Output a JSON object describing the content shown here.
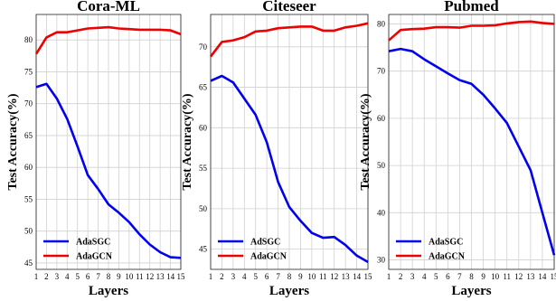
{
  "chart_data": [
    {
      "type": "line",
      "title": "Cora-ML",
      "xlabel": "Layers",
      "ylabel": "Test Accuracy(%)",
      "x": [
        1,
        2,
        3,
        4,
        5,
        6,
        7,
        8,
        9,
        10,
        11,
        12,
        13,
        14,
        15
      ],
      "xticks": [
        "1",
        "2",
        "3",
        "4",
        "5",
        "6",
        "7",
        "8",
        "9",
        "10",
        "11",
        "12",
        "13",
        "14",
        "15"
      ],
      "ylim": [
        44,
        84
      ],
      "yticks": [
        45,
        50,
        55,
        60,
        65,
        70,
        75,
        80
      ],
      "grid": true,
      "legend_position": "lower-left",
      "series": [
        {
          "name": "AdaSGC",
          "color": "#0000ee",
          "values": [
            72.6,
            73.1,
            70.8,
            67.6,
            63.3,
            58.8,
            56.6,
            54.2,
            52.9,
            51.4,
            49.5,
            47.9,
            46.7,
            45.9,
            45.8
          ]
        },
        {
          "name": "AdaGCN",
          "color": "#ee0000",
          "values": [
            77.8,
            80.4,
            81.2,
            81.2,
            81.5,
            81.8,
            81.9,
            82.0,
            81.8,
            81.7,
            81.6,
            81.6,
            81.6,
            81.5,
            80.9
          ]
        }
      ]
    },
    {
      "type": "line",
      "title": "Citeseer",
      "xlabel": "Layers",
      "ylabel": "Test Accuracy(%)",
      "x": [
        1,
        2,
        3,
        4,
        5,
        6,
        7,
        8,
        9,
        10,
        11,
        12,
        13,
        14,
        15
      ],
      "xticks": [
        "1",
        "2",
        "3",
        "4",
        "5",
        "6",
        "7",
        "8",
        "9",
        "10",
        "11",
        "12",
        "13",
        "14",
        "15"
      ],
      "ylim": [
        42.5,
        74
      ],
      "yticks": [
        45,
        50,
        55,
        60,
        65,
        70
      ],
      "grid": true,
      "legend_position": "lower-left",
      "series": [
        {
          "name": "AdSGC",
          "color": "#0000ee",
          "values": [
            65.8,
            66.4,
            65.6,
            63.6,
            61.6,
            58.2,
            53.3,
            50.2,
            48.5,
            47.0,
            46.4,
            46.5,
            45.5,
            44.2,
            43.4
          ]
        },
        {
          "name": "AdaGCN",
          "color": "#ee0000",
          "values": [
            68.8,
            70.6,
            70.8,
            71.2,
            71.9,
            72.0,
            72.3,
            72.4,
            72.5,
            72.5,
            72.0,
            72.0,
            72.4,
            72.6,
            72.9
          ]
        }
      ]
    },
    {
      "type": "line",
      "title": "Pubmed",
      "xlabel": "Layers",
      "ylabel": "Test Accuracy(%)",
      "x": [
        1,
        2,
        3,
        4,
        5,
        6,
        7,
        8,
        9,
        10,
        11,
        12,
        13,
        14,
        15
      ],
      "xticks": [
        "1",
        "2",
        "3",
        "4",
        "5",
        "6",
        "7",
        "8",
        "9",
        "10",
        "11",
        "12",
        "13",
        "14",
        "15"
      ],
      "ylim": [
        28,
        82
      ],
      "yticks": [
        30,
        40,
        50,
        60,
        70,
        80
      ],
      "grid": true,
      "legend_position": "lower-left",
      "series": [
        {
          "name": "AdaSGC",
          "color": "#0000ee",
          "values": [
            74.2,
            74.7,
            74.2,
            72.5,
            71.0,
            69.5,
            68.1,
            67.3,
            65.0,
            62.1,
            59.0,
            54.0,
            49.0,
            40.0,
            31.0
          ]
        },
        {
          "name": "AdaGCN",
          "color": "#ee0000",
          "values": [
            76.5,
            78.7,
            78.9,
            79.0,
            79.3,
            79.3,
            79.2,
            79.6,
            79.6,
            79.7,
            80.1,
            80.4,
            80.5,
            80.2,
            80.0
          ]
        }
      ]
    }
  ]
}
